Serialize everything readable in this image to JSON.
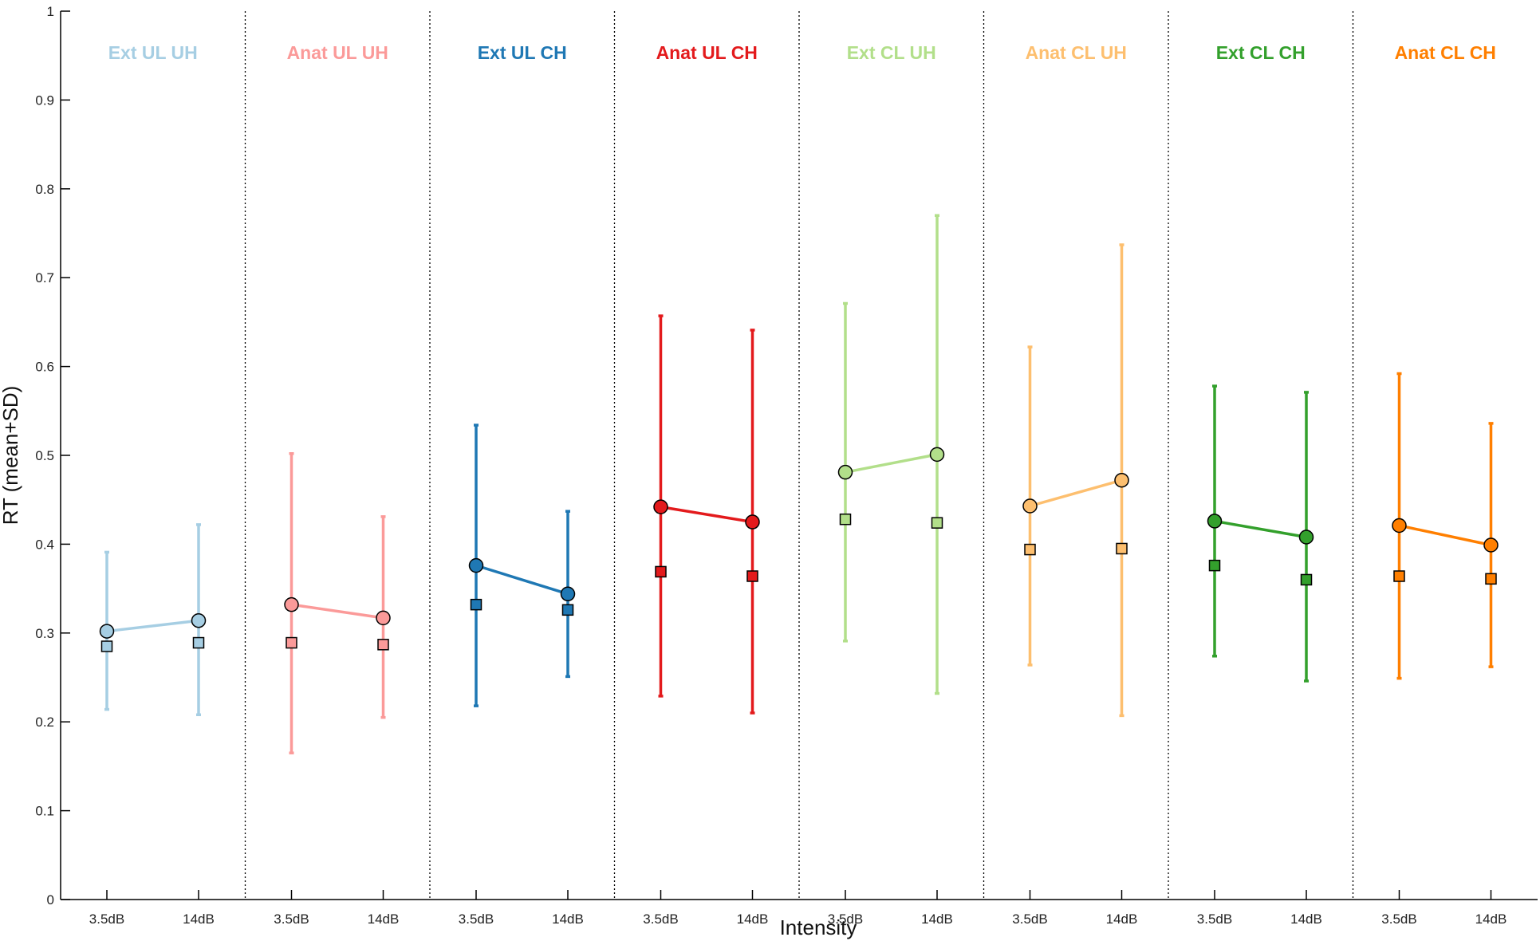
{
  "chart_data": {
    "type": "line",
    "xlabel": "Intensity",
    "ylabel": "RT (mean+SD)",
    "ylim": [
      0,
      1
    ],
    "yticks": [
      "0",
      "0.1",
      "0.2",
      "0.3",
      "0.4",
      "0.5",
      "0.6",
      "0.7",
      "0.8",
      "0.9",
      "1"
    ],
    "grid": false,
    "categories": [
      "3.5dB",
      "14dB"
    ],
    "groups": [
      {
        "label": "Ext UL UH",
        "color": "#a6cee3",
        "circles": [
          0.302,
          0.314
        ],
        "squares": [
          0.285,
          0.289
        ],
        "sd_upper": [
          0.391,
          0.422
        ],
        "sd_lower": [
          0.214,
          0.208
        ]
      },
      {
        "label": "Anat UL UH",
        "color": "#fb9a99",
        "circles": [
          0.332,
          0.317
        ],
        "squares": [
          0.289,
          0.287
        ],
        "sd_upper": [
          0.502,
          0.431
        ],
        "sd_lower": [
          0.165,
          0.205
        ]
      },
      {
        "label": "Ext UL CH",
        "color": "#1f78b4",
        "circles": [
          0.376,
          0.344
        ],
        "squares": [
          0.332,
          0.326
        ],
        "sd_upper": [
          0.534,
          0.437
        ],
        "sd_lower": [
          0.218,
          0.251
        ]
      },
      {
        "label": "Anat UL CH",
        "color": "#e31a1c",
        "circles": [
          0.442,
          0.425
        ],
        "squares": [
          0.369,
          0.364
        ],
        "sd_upper": [
          0.657,
          0.641
        ],
        "sd_lower": [
          0.229,
          0.21
        ]
      },
      {
        "label": "Ext CL UH",
        "color": "#b2df8a",
        "circles": [
          0.481,
          0.501
        ],
        "squares": [
          0.428,
          0.424
        ],
        "sd_upper": [
          0.671,
          0.77
        ],
        "sd_lower": [
          0.291,
          0.232
        ]
      },
      {
        "label": "Anat CL UH",
        "color": "#fdbf6f",
        "circles": [
          0.443,
          0.472
        ],
        "squares": [
          0.394,
          0.395
        ],
        "sd_upper": [
          0.622,
          0.737
        ],
        "sd_lower": [
          0.264,
          0.207
        ]
      },
      {
        "label": "Ext CL CH",
        "color": "#33a02c",
        "circles": [
          0.426,
          0.408
        ],
        "squares": [
          0.376,
          0.36
        ],
        "sd_upper": [
          0.578,
          0.571
        ],
        "sd_lower": [
          0.274,
          0.246
        ]
      },
      {
        "label": "Anat CL CH",
        "color": "#ff7f00",
        "circles": [
          0.421,
          0.399
        ],
        "squares": [
          0.364,
          0.361
        ],
        "sd_upper": [
          0.592,
          0.536
        ],
        "sd_lower": [
          0.249,
          0.262
        ]
      }
    ]
  }
}
